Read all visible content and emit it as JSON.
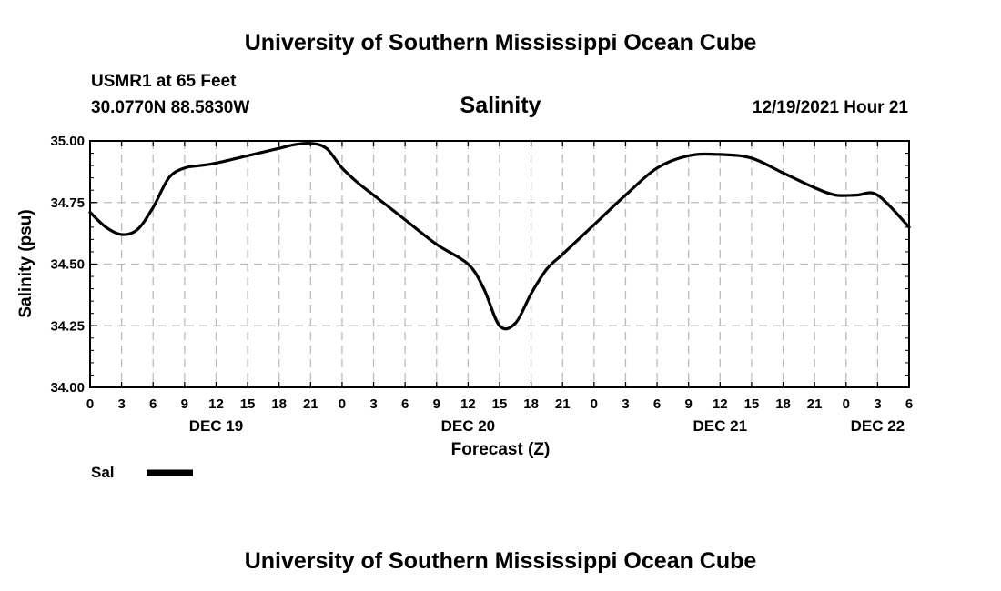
{
  "header": {
    "title": "University of Southern Mississippi Ocean Cube",
    "station": "USMR1 at 65 Feet",
    "location": "30.0770N  88.5830W",
    "timestamp": "12/19/2021 Hour 21",
    "footer_title": "University of Southern Mississippi Ocean Cube"
  },
  "chart_data": {
    "type": "line",
    "title": "Salinity",
    "xlabel": "Forecast (Z)",
    "ylabel": "Salinity (psu)",
    "ylim": [
      34.0,
      35.0
    ],
    "xlim": [
      0,
      78
    ],
    "x_unit": "hours since DEC 19 00Z",
    "yticks": [
      34.0,
      34.25,
      34.5,
      34.75,
      35.0
    ],
    "ytick_labels": [
      "34.00",
      "34.25",
      "34.50",
      "34.75",
      "35.00"
    ],
    "xticks": [
      0,
      3,
      6,
      9,
      12,
      15,
      18,
      21,
      24,
      27,
      30,
      33,
      36,
      39,
      42,
      45,
      48,
      51,
      54,
      57,
      60,
      63,
      66,
      69,
      72,
      75,
      78
    ],
    "xtick_labels": [
      "0",
      "3",
      "6",
      "9",
      "12",
      "15",
      "18",
      "21",
      "0",
      "3",
      "6",
      "9",
      "12",
      "15",
      "18",
      "21",
      "0",
      "3",
      "6",
      "9",
      "12",
      "15",
      "18",
      "21",
      "0",
      "3",
      "6"
    ],
    "day_labels": [
      {
        "x": 12,
        "label": "DEC 19"
      },
      {
        "x": 36,
        "label": "DEC 20"
      },
      {
        "x": 60,
        "label": "DEC 21"
      },
      {
        "x": 75,
        "label": "DEC 22"
      }
    ],
    "grid": true,
    "legend": {
      "position": "bottom-left",
      "entries": [
        {
          "name": "Sal",
          "color": "#000000"
        }
      ]
    },
    "series": [
      {
        "name": "Sal",
        "color": "#000000",
        "x": [
          0,
          1.5,
          3,
          4.5,
          6,
          7.5,
          9,
          10.5,
          12,
          15,
          18,
          19.5,
          21,
          22.5,
          24,
          25.5,
          27,
          30,
          33,
          36,
          37.5,
          39,
          40.5,
          42,
          43.5,
          45,
          46.5,
          48,
          51,
          54,
          57,
          60,
          63,
          66,
          69,
          71,
          73,
          75,
          78
        ],
        "values": [
          34.71,
          34.65,
          34.62,
          34.64,
          34.73,
          34.85,
          34.89,
          34.9,
          34.91,
          34.94,
          34.97,
          34.985,
          34.99,
          34.97,
          34.89,
          34.83,
          34.78,
          34.68,
          34.58,
          34.5,
          34.4,
          34.25,
          34.26,
          34.38,
          34.48,
          34.54,
          34.6,
          34.66,
          34.78,
          34.89,
          34.94,
          34.945,
          34.93,
          34.87,
          34.81,
          34.78,
          34.78,
          34.78,
          34.65
        ]
      }
    ]
  }
}
